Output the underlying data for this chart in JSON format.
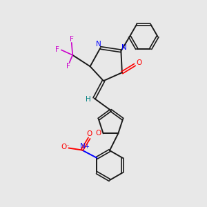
{
  "background_color": "#e8e8e8",
  "bond_color": "#1a1a1a",
  "N_color": "#0000ff",
  "O_color": "#ff0000",
  "F_color": "#cc00cc",
  "H_color": "#008080",
  "figsize": [
    3.0,
    3.0
  ],
  "dpi": 100,
  "xlim": [
    0,
    10
  ],
  "ylim": [
    0,
    10
  ]
}
